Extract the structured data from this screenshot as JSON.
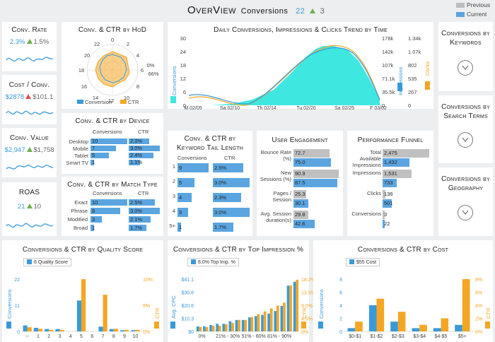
{
  "header": {
    "title": "OverView",
    "subtitle": "Conversions",
    "current_value": "22",
    "delta": "3",
    "legend_previous": "Previous",
    "legend_current": "Current"
  },
  "colors": {
    "blue": "#3a9ad9",
    "orange": "#f5a623",
    "cyan": "#3ee8e0",
    "gray": "#bdbdbd",
    "green": "#6ab04c",
    "red": "#d9534f"
  },
  "kpis": [
    {
      "title": "Conv. Rate",
      "current": "2.3%",
      "trend": "up",
      "previous": "1.5%"
    },
    {
      "title": "Cost / Conv.",
      "current": "$2878",
      "trend": "up-red",
      "previous": "$101.1"
    },
    {
      "title": "Conv. Value",
      "current": "$2,947",
      "trend": "up",
      "previous": "$1,758"
    },
    {
      "title": "ROAS",
      "current": "21",
      "trend": "up",
      "previous": "10"
    }
  ],
  "hod": {
    "title": "Conv. & CTR by HoD",
    "axis_labels": [
      "0",
      "2",
      "4",
      "6",
      "8",
      "10",
      "12",
      "14",
      "16",
      "18",
      "20",
      "22"
    ],
    "pct_labels": [
      "66%",
      "0%"
    ],
    "legend": [
      "Conversion",
      "CTR"
    ]
  },
  "trend": {
    "title": "Daily Conversions, Impressions & Clicks Trend by Time",
    "y_left_label": "Conversions",
    "y_left_ticks": [
      "30",
      "24",
      "18",
      "12",
      "6",
      "0"
    ],
    "y_imp_label": "Impressions",
    "y_imp_ticks": [
      "178k",
      "142k",
      "107k",
      "71.1k",
      "35.5k",
      "0"
    ],
    "y_clicks_label": "Clicks",
    "y_clicks_ticks": [
      "1.34k",
      "1.07k",
      "802",
      "535",
      "267",
      "0"
    ],
    "x_ticks": [
      "M 02/05",
      "Sa 02/10",
      "Th 02/14",
      "Tu 02/20",
      "Sa 02/25",
      "F 03/02"
    ]
  },
  "device": {
    "title": "Conv. & CTR by Device",
    "col1": "Conversions",
    "col2": "CTR",
    "rows": [
      {
        "label": "Desktop",
        "conv": "10",
        "conv_v": 10,
        "ctr": "2.0%",
        "ctr_v": 2.0
      },
      {
        "label": "Mobile",
        "conv": "7",
        "conv_v": 7,
        "ctr": "3.0%",
        "ctr_v": 3.0
      },
      {
        "label": "Tablet",
        "conv": "5",
        "conv_v": 5,
        "ctr": "2.4%",
        "ctr_v": 2.4
      },
      {
        "label": "Smart TV",
        "conv": "1",
        "conv_v": 1,
        "ctr": "1.1%",
        "ctr_v": 1.1
      }
    ]
  },
  "match": {
    "title": "Conv. & CTR by Match Type",
    "col1": "Conversions",
    "col2": "CTR",
    "rows": [
      {
        "label": "Exact",
        "conv": "10",
        "conv_v": 10,
        "ctr": "2.5%",
        "ctr_v": 2.5
      },
      {
        "label": "Phrase",
        "conv": "8",
        "conv_v": 8,
        "ctr": "3.0%",
        "ctr_v": 3.0
      },
      {
        "label": "Modified",
        "conv": "3",
        "conv_v": 3,
        "ctr": "2.1%",
        "ctr_v": 2.1
      },
      {
        "label": "Broad",
        "conv": "1",
        "conv_v": 1,
        "ctr": "1.7%",
        "ctr_v": 1.7
      }
    ]
  },
  "tail": {
    "title": "Conv. & CTR by Keyword Tail Length",
    "col1": "Conversions",
    "col2": "CTR",
    "rows": [
      {
        "label": "1",
        "conv": "9",
        "conv_v": 9,
        "ctr": "2.5%",
        "ctr_v": 2.5
      },
      {
        "label": "2",
        "conv": "5",
        "conv_v": 5,
        "ctr": "3.0%",
        "ctr_v": 3.0
      },
      {
        "label": "3",
        "conv": "4",
        "conv_v": 4,
        "ctr": "2.3%",
        "ctr_v": 2.3
      },
      {
        "label": "4",
        "conv": "3",
        "conv_v": 3,
        "ctr": "3.0%",
        "ctr_v": 3.0
      },
      {
        "label": "5+",
        "conv": "1",
        "conv_v": 1,
        "ctr": "1.7%",
        "ctr_v": 1.7
      }
    ]
  },
  "engagement": {
    "title": "User Engagement",
    "rows": [
      {
        "label": "Bounce Rate (%)",
        "prev": "72.7",
        "prev_v": 72.7,
        "cur": "75.0",
        "cur_v": 75.0
      },
      {
        "label": "New Sessions (%)",
        "prev": "90.9",
        "prev_v": 90.9,
        "cur": "87.5",
        "cur_v": 87.5
      },
      {
        "label": "Pages / Session",
        "prev": "25.3",
        "prev_v": 25.3,
        "cur": "30.1",
        "cur_v": 30.1
      },
      {
        "label": "Avg. Session duration(s)",
        "prev": "29.8",
        "prev_v": 29.8,
        "cur": "42.6",
        "cur_v": 42.6
      }
    ]
  },
  "funnel": {
    "title": "Performance Funnel",
    "rows": [
      {
        "label": "Total Available Impressions",
        "prev": "2,475",
        "prev_v": 2475,
        "cur": "1,432",
        "cur_v": 1432
      },
      {
        "label": "Impressions",
        "prev": "1,531",
        "prev_v": 1531,
        "cur": "733",
        "cur_v": 733
      },
      {
        "label": "Clicks",
        "prev": "136",
        "prev_v": 136,
        "cur": "501",
        "cur_v": 501
      },
      {
        "label": "Conversions",
        "prev": "3",
        "prev_v": 3,
        "cur": "22",
        "cur_v": 22
      }
    ]
  },
  "nav_cards": [
    {
      "title": "Conversions by Keywords"
    },
    {
      "title": "Conversions by Search Terms"
    },
    {
      "title": "Conversions by Geography"
    }
  ],
  "chart_data": [
    {
      "type": "bar",
      "title": "Conversions & CTR by Quality Score",
      "legend_label": "6",
      "legend_suffix": "Quality Score",
      "ylabel": "Conversions",
      "y2label": "CTR",
      "y_ticks": [
        "22",
        "11",
        "0"
      ],
      "y2_ticks": [
        "10%",
        "5%",
        "0%"
      ],
      "ylim": [
        0,
        22
      ],
      "y2lim": [
        0,
        10
      ],
      "categories": [
        "--",
        "1",
        "2",
        "3",
        "4",
        "5",
        "6",
        "7",
        "8",
        "9",
        "10"
      ],
      "series": [
        {
          "name": "Conversions",
          "values": [
            2.5,
            1.5,
            1,
            1,
            0,
            13,
            0,
            2,
            1,
            0.5,
            0.5
          ]
        },
        {
          "name": "CTR",
          "values": [
            0.8,
            0.5,
            0.3,
            0.3,
            0,
            10,
            0,
            7,
            0.5,
            0.3,
            0.3
          ]
        }
      ]
    },
    {
      "type": "bar",
      "title": "Conversions & CTR by Top Impression %",
      "legend_label": "8.0%",
      "legend_suffix": "Top Imp. %",
      "ylabel": "Avg. CPC",
      "y2label": "CTR",
      "y_ticks": [
        "$41.1",
        "$30.8",
        "$20.6",
        "$10.3",
        "$0"
      ],
      "y2_ticks": [
        "18.2%",
        "13.5%",
        "9.0%",
        "4.5%",
        "0%"
      ],
      "ylim": [
        0,
        41.1
      ],
      "y2lim": [
        0,
        18.2
      ],
      "x_tick_labels": [
        "0%",
        "21% - 30%",
        "51% - 60%",
        "81% - 90%"
      ],
      "categories": [
        "0%",
        "",
        "",
        "",
        "21% - 30%",
        "",
        "",
        "",
        "51% - 60%",
        "",
        "",
        "",
        "81% - 90%",
        "",
        "",
        ""
      ],
      "series": [
        {
          "name": "Avg. CPC",
          "values": [
            4,
            4,
            5,
            6,
            6,
            8,
            9,
            9,
            11,
            12,
            13,
            14,
            16,
            20,
            36,
            39
          ]
        },
        {
          "name": "CTR",
          "values": [
            1.5,
            1.5,
            2,
            2,
            2.5,
            3,
            4,
            4,
            5,
            6,
            7,
            8,
            9,
            10,
            16,
            18
          ]
        }
      ]
    },
    {
      "type": "bar",
      "title": "Conversions & CTR by Cost",
      "legend_label": "$55",
      "legend_suffix": "Cost",
      "ylabel": "Conversions",
      "y2label": "CTR",
      "y_ticks": [
        "8",
        "6",
        "4",
        "2",
        "0"
      ],
      "y2_ticks": [
        "8%",
        "6%",
        "4%",
        "2%",
        "0%"
      ],
      "ylim": [
        0,
        8
      ],
      "y2lim": [
        0,
        8
      ],
      "categories": [
        "$0-$1",
        "$1-$2",
        "$2-$3",
        "$3-$4",
        "$4-$5",
        "$5+"
      ],
      "series": [
        {
          "name": "Conversions",
          "values": [
            0.5,
            4,
            1.5,
            0.5,
            0.5,
            1
          ]
        },
        {
          "name": "CTR",
          "values": [
            1.5,
            5,
            3,
            1,
            2,
            8
          ]
        }
      ]
    }
  ]
}
